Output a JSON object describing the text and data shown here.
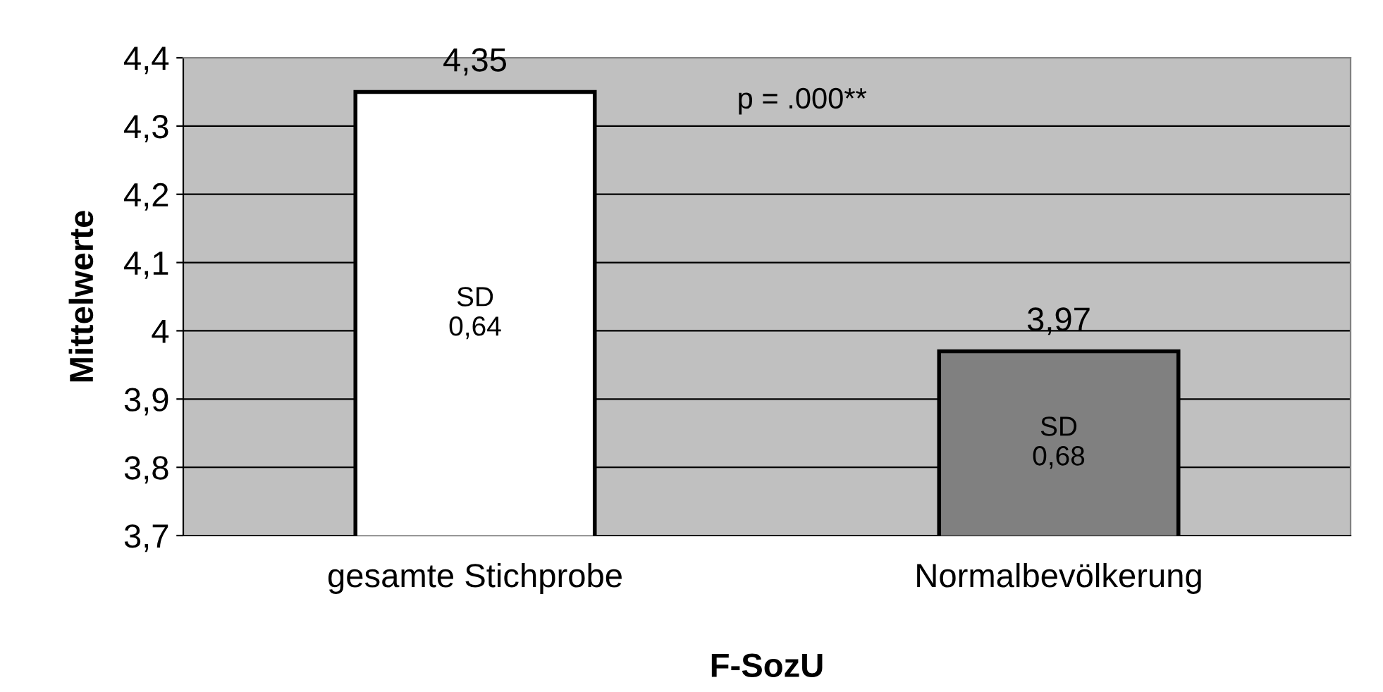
{
  "chart_data": {
    "type": "bar",
    "xlabel": "F-SozU",
    "ylabel": "Mittelwerte",
    "categories": [
      "gesamte Stichprobe",
      "Normalbevölkerung"
    ],
    "values": [
      4.35,
      3.97
    ],
    "colors": [
      "#ffffff",
      "#808080"
    ],
    "value_labels": [
      "4,35",
      "3,97"
    ],
    "ylim": [
      3.7,
      4.4
    ],
    "yticks": [
      {
        "value": 3.7,
        "label": "3,7"
      },
      {
        "value": 3.8,
        "label": "3,8"
      },
      {
        "value": 3.9,
        "label": "3,9"
      },
      {
        "value": 4,
        "label": "4"
      },
      {
        "value": 4.1,
        "label": "4,1"
      },
      {
        "value": 4.2,
        "label": "4,2"
      },
      {
        "value": 4.3,
        "label": "4,3"
      },
      {
        "value": 4.4,
        "label": "4,4"
      }
    ],
    "grid": "y",
    "legend": false,
    "annotations": [
      "SD\n0,64",
      "SD\n0,68",
      "p = .000**"
    ]
  }
}
